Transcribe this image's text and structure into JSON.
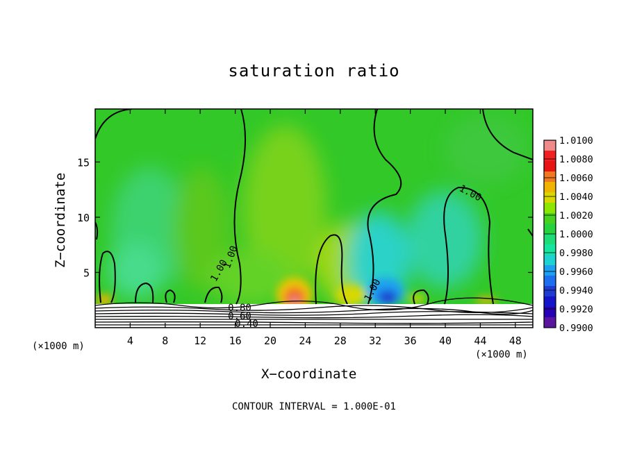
{
  "chart_data": {
    "type": "heatmap",
    "title": "saturation ratio",
    "xlabel": "X−coordinate",
    "ylabel": "Z−coordinate",
    "x_unit_left": "(×1000 m)",
    "x_unit_right": "(×1000 m)",
    "x_ticks": [
      "4",
      "8",
      "12",
      "16",
      "20",
      "24",
      "28",
      "32",
      "36",
      "40",
      "44",
      "48"
    ],
    "x_tick_values": [
      4,
      8,
      12,
      16,
      20,
      24,
      28,
      32,
      36,
      40,
      44,
      48
    ],
    "y_ticks": [
      "5",
      "10",
      "15"
    ],
    "y_tick_values": [
      5,
      10,
      15
    ],
    "xlim": [
      0,
      50
    ],
    "ylim": [
      0,
      19.8
    ],
    "colorbar": {
      "labels": [
        "1.0100",
        "1.0080",
        "1.0060",
        "1.0040",
        "1.0020",
        "1.0000",
        "0.9980",
        "0.9960",
        "0.9940",
        "0.9920",
        "0.9900"
      ],
      "colors": [
        "#f08a8a",
        "#f02020",
        "#e81414",
        "#f07820",
        "#f0b400",
        "#d8d800",
        "#8ce600",
        "#46d21e",
        "#28d23c",
        "#1edc78",
        "#14e6a0",
        "#1ed2d2",
        "#1ea0f0",
        "#1e6ef0",
        "#1e3cd2",
        "#1414c8",
        "#2800b4",
        "#5a14a0"
      ],
      "levels": [
        1.01,
        0.99
      ]
    },
    "contour_labels": [
      "1.00",
      "1.00",
      "1.00",
      "1.00",
      "0.80",
      "0.60",
      "0.40"
    ],
    "contour_interval": "CONTOUR INTERVAL = 1.000E-01"
  }
}
